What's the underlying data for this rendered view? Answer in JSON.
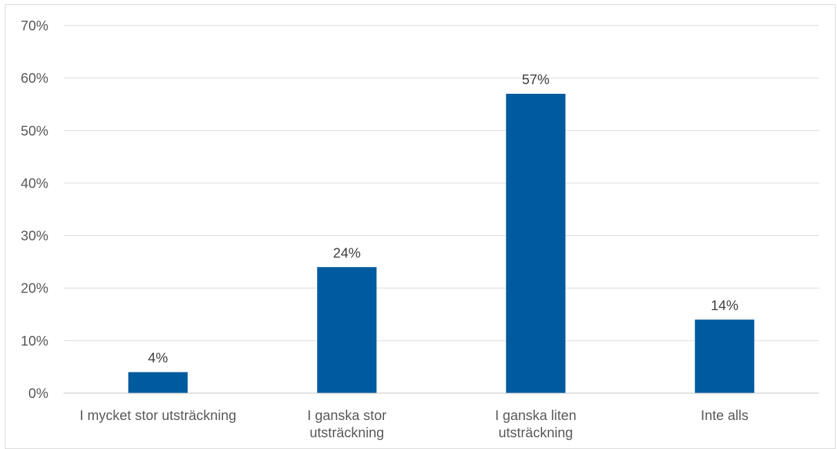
{
  "chart_data": {
    "type": "bar",
    "categories": [
      [
        "I mycket stor utsträckning"
      ],
      [
        "I ganska stor",
        "utsträckning"
      ],
      [
        "I ganska liten",
        "utsträckning"
      ],
      [
        "Inte alls"
      ]
    ],
    "values": [
      4,
      24,
      57,
      14
    ],
    "data_labels": [
      "4%",
      "24%",
      "57%",
      "14%"
    ],
    "ylim": [
      0,
      70
    ],
    "yticks": [
      0,
      10,
      20,
      30,
      40,
      50,
      60,
      70
    ],
    "ytick_labels": [
      "0%",
      "10%",
      "20%",
      "30%",
      "40%",
      "50%",
      "60%",
      "70%"
    ],
    "grid": true,
    "legend": "none",
    "colors": {
      "bar": "#005a9e",
      "grid": "#d9d9d9",
      "axis": "#bfbfbf"
    }
  }
}
